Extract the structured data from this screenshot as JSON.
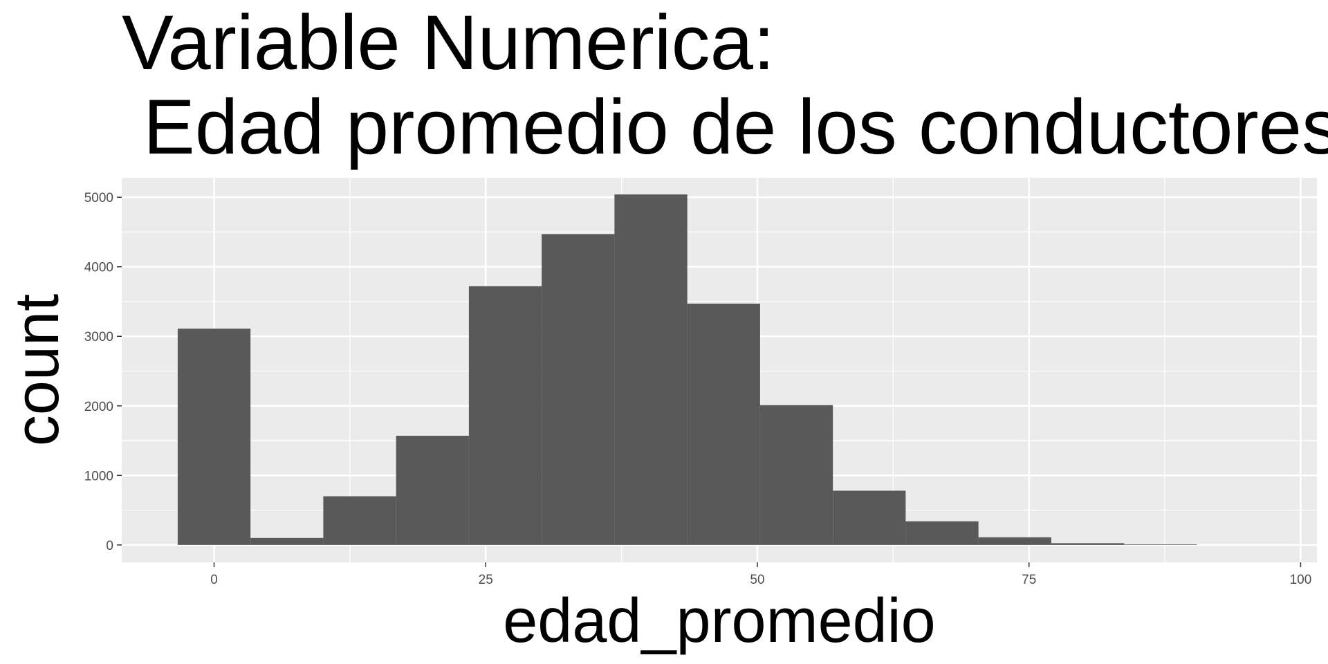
{
  "chart_data": {
    "type": "bar",
    "title_lines": [
      "Variable Numerica:",
      " Edad promedio de los conductores"
    ],
    "xlabel": "edad_promedio",
    "ylabel": "count",
    "xlim": [
      -8.5,
      101.5
    ],
    "ylim": [
      -250,
      5280
    ],
    "x_ticks": [
      0,
      25,
      50,
      75,
      100
    ],
    "y_ticks": [
      0,
      1000,
      2000,
      3000,
      4000,
      5000
    ],
    "grid": true,
    "bin_width": 6.7,
    "bins": [
      {
        "x0": -3.35,
        "x1": 3.35,
        "count": 3110
      },
      {
        "x0": 3.35,
        "x1": 10.05,
        "count": 100
      },
      {
        "x0": 10.05,
        "x1": 16.75,
        "count": 700
      },
      {
        "x0": 16.75,
        "x1": 23.45,
        "count": 1570
      },
      {
        "x0": 23.45,
        "x1": 30.15,
        "count": 3720
      },
      {
        "x0": 30.15,
        "x1": 36.85,
        "count": 4470
      },
      {
        "x0": 36.85,
        "x1": 43.55,
        "count": 5040
      },
      {
        "x0": 43.55,
        "x1": 50.25,
        "count": 3470
      },
      {
        "x0": 50.25,
        "x1": 56.95,
        "count": 2010
      },
      {
        "x0": 56.95,
        "x1": 63.65,
        "count": 780
      },
      {
        "x0": 63.65,
        "x1": 70.35,
        "count": 340
      },
      {
        "x0": 70.35,
        "x1": 77.05,
        "count": 110
      },
      {
        "x0": 77.05,
        "x1": 83.75,
        "count": 25
      },
      {
        "x0": 83.75,
        "x1": 90.45,
        "count": 8
      }
    ],
    "colors": {
      "bar": "#595959",
      "panel": "#ebebeb",
      "grid": "#ffffff",
      "tick_text": "#4d4d4d",
      "tick_mark": "#333333"
    }
  }
}
